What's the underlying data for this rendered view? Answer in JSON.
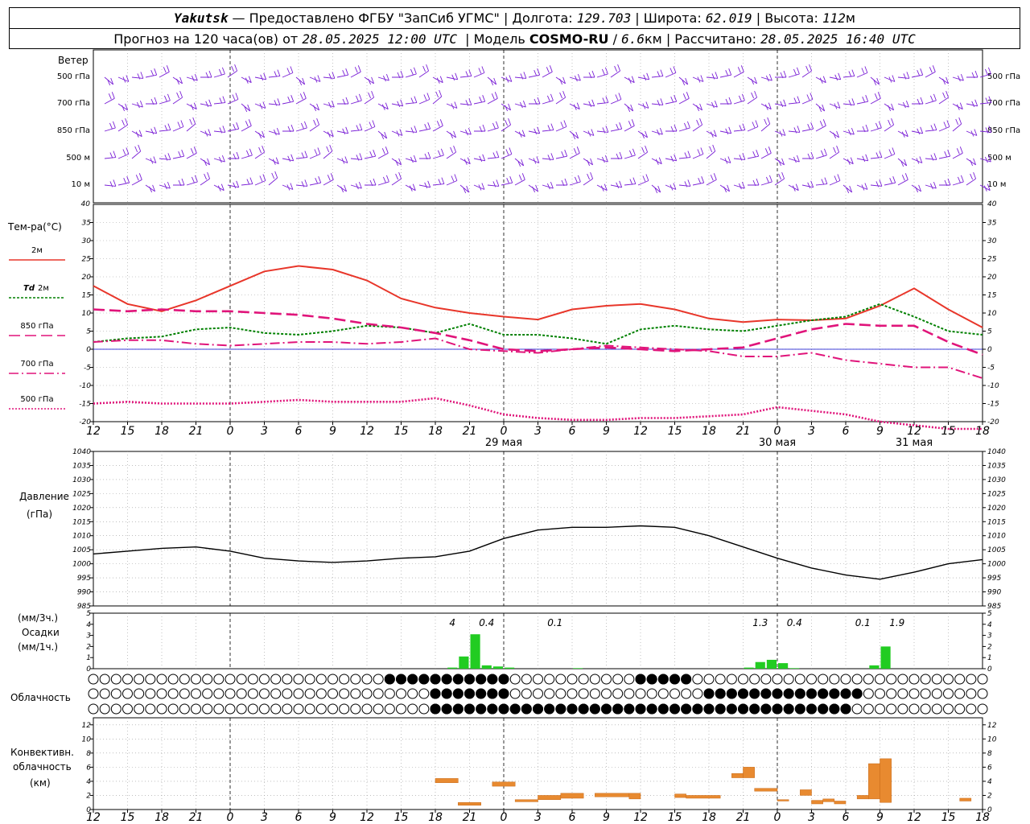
{
  "header": {
    "station": "Yakutsk",
    "dash": "—",
    "provider": "Предоставлено ФГБУ \"ЗапСиб УГМС\"",
    "lon_label": "Долгота:",
    "lon_value": "129.703",
    "lat_label": "Широта:",
    "lat_value": "62.019",
    "alt_label": "Высота:",
    "alt_value": "112",
    "alt_unit": "м",
    "forecast_prefix": "Прогноз на 120 часа(ов) от",
    "forecast_start": "28.05.2025 12:00 UTC",
    "model_label": "Модель",
    "model_name": "COSMO-RU",
    "model_res": "6.6",
    "model_res_unit": "км",
    "calc_label": "Рассчитано:",
    "calc_time": "28.05.2025 16:40 UTC"
  },
  "colors": {
    "wind": "#7a1fd6",
    "t2m": "#e8362a",
    "td2m": "#008000",
    "t850": "#e0147a",
    "t700": "#e0147a",
    "t500": "#e0147a",
    "pressure": "#000000",
    "precip": "#22cc22",
    "conv": "#e88a30",
    "zero_line": "#0000cc"
  },
  "x_axis": {
    "tick_labels": [
      "12",
      "15",
      "18",
      "21",
      "0",
      "3",
      "6",
      "9",
      "12",
      "15",
      "18",
      "21",
      "0",
      "3",
      "6",
      "9",
      "12",
      "15",
      "18",
      "21",
      "0",
      "3",
      "6",
      "9",
      "12",
      "15",
      "18"
    ],
    "day_labels": [
      "29 мая",
      "30 мая",
      "31 мая"
    ]
  },
  "wind_panel": {
    "title": "Ветер",
    "levels": [
      "500 гПа",
      "700 гПа",
      "850 гПа",
      "500 м",
      "10 м"
    ]
  },
  "temp_panel": {
    "title": "Тем-ра(°C)",
    "legend": [
      {
        "key": "t2m",
        "label": "2м"
      },
      {
        "key": "td2m",
        "prefix": "Td",
        "label": "2м"
      },
      {
        "key": "t850",
        "label": "850 гПа"
      },
      {
        "key": "t700",
        "label": "700 гПа"
      },
      {
        "key": "t500",
        "label": "500 гПа"
      }
    ]
  },
  "pressure_panel": {
    "title": "Давление",
    "unit": "(гПа)"
  },
  "precip_panel": {
    "unit3": "(мм/3ч.)",
    "title": "Осадки",
    "unit1": "(мм/1ч.)"
  },
  "cloud_panel": {
    "title": "Облачность"
  },
  "conv_panel": {
    "title1": "Конвективн.",
    "title2": "облачность",
    "unit": "(км)"
  },
  "chart_data": [
    {
      "type": "line",
      "title": "Тем-ра(°C)",
      "ylim": [
        -20,
        40
      ],
      "y_ticks": [
        -20,
        -15,
        -10,
        -5,
        0,
        5,
        10,
        15,
        20,
        25,
        30,
        35,
        40
      ],
      "x_hours": [
        0,
        3,
        6,
        9,
        12,
        15,
        18,
        21,
        24,
        27,
        30,
        33,
        36,
        39,
        42,
        45,
        48,
        51,
        54,
        57,
        60,
        63,
        66,
        69,
        72,
        75,
        78
      ],
      "series": [
        {
          "name": "2м",
          "values": [
            17.5,
            12.5,
            10.5,
            13.5,
            17.5,
            21.5,
            23,
            22,
            19,
            14,
            11.5,
            10,
            9,
            8.2,
            11,
            12,
            12.5,
            11,
            8.5,
            7.5,
            8.2,
            8,
            8.5,
            12,
            16.8,
            11,
            6
          ]
        },
        {
          "name": "Td 2м",
          "values": [
            2,
            3,
            3.5,
            5.5,
            6,
            4.5,
            4,
            5,
            6.5,
            6,
            4.5,
            7,
            4,
            4,
            3,
            1.5,
            5.5,
            6.5,
            5.5,
            5,
            6.5,
            8,
            9,
            12.5,
            9,
            5,
            4
          ]
        },
        {
          "name": "850 гПа",
          "values": [
            11,
            10.5,
            11,
            10.5,
            10.5,
            10,
            9.5,
            8.5,
            7,
            6,
            4.5,
            2.5,
            0,
            -0.5,
            0,
            0.5,
            0,
            -0.5,
            0,
            0.5,
            3,
            5.5,
            7,
            6.5,
            6.5,
            2,
            -1.5
          ]
        },
        {
          "name": "700 гПа",
          "values": [
            2,
            2.5,
            2.5,
            1.5,
            1,
            1.5,
            2,
            2,
            1.5,
            2,
            3,
            0,
            -0.5,
            -1,
            0,
            1,
            0.5,
            0,
            -0.5,
            -2,
            -2,
            -1,
            -3,
            -4,
            -5,
            -5,
            -8
          ]
        },
        {
          "name": "500 гПа",
          "values": [
            -15,
            -14.5,
            -15,
            -15,
            -15,
            -14.5,
            -14,
            -14.5,
            -14.5,
            -14.5,
            -13.5,
            -15.5,
            -18,
            -19,
            -19.5,
            -19.5,
            -19,
            -19,
            -18.5,
            -18,
            -16,
            -17,
            -18,
            -20,
            -21,
            -22,
            -22
          ]
        }
      ]
    },
    {
      "type": "line",
      "title": "Давление",
      "ylim": [
        985,
        1040
      ],
      "y_ticks": [
        985,
        990,
        995,
        1000,
        1005,
        1010,
        1015,
        1020,
        1025,
        1030,
        1035,
        1040
      ],
      "x_hours": [
        0,
        3,
        6,
        9,
        12,
        15,
        18,
        21,
        24,
        27,
        30,
        33,
        36,
        39,
        42,
        45,
        48,
        51,
        54,
        57,
        60,
        63,
        66,
        69,
        72,
        75,
        78
      ],
      "series": [
        {
          "name": "Давление",
          "values": [
            1003.5,
            1004.5,
            1005.5,
            1006,
            1004.5,
            1002,
            1001,
            1000.5,
            1001,
            1002,
            1002.5,
            1004.5,
            1009,
            1012,
            1013,
            1013,
            1013.5,
            1013,
            1010,
            1006,
            1002,
            998.5,
            996,
            994.5,
            997,
            1000,
            1001.5
          ]
        }
      ]
    },
    {
      "type": "bar",
      "title": "Осадки",
      "ylim": [
        0,
        5
      ],
      "y_ticks": [
        0,
        1,
        2,
        3,
        4,
        5
      ],
      "x_hours": [
        31,
        32,
        33,
        34,
        35,
        36,
        42,
        57,
        58,
        59,
        60,
        61,
        68,
        69
      ],
      "values": [
        0.1,
        1.1,
        3.1,
        0.3,
        0.2,
        0.1,
        0.05,
        0.1,
        0.6,
        0.8,
        0.5,
        0.05,
        0.3,
        2.0
      ],
      "annotations": [
        {
          "x": 31.5,
          "text": "4"
        },
        {
          "x": 34.5,
          "text": "0.4"
        },
        {
          "x": 40.5,
          "text": "0.1"
        },
        {
          "x": 58.5,
          "text": "1.3"
        },
        {
          "x": 61.5,
          "text": "0.4"
        },
        {
          "x": 67.5,
          "text": "0.1"
        },
        {
          "x": 70.5,
          "text": "1.9"
        }
      ]
    },
    {
      "type": "bar",
      "title": "Конвективн. облачность",
      "ylim": [
        0,
        13
      ],
      "y_ticks": [
        0,
        2,
        4,
        6,
        8,
        10,
        12
      ],
      "layers": [
        {
          "x0": 30,
          "x1": 32,
          "bottom": 3.8,
          "top": 4.4
        },
        {
          "x0": 32,
          "x1": 34,
          "bottom": 0.6,
          "top": 1.0
        },
        {
          "x0": 35,
          "x1": 37,
          "bottom": 3.3,
          "top": 3.9
        },
        {
          "x0": 37,
          "x1": 39,
          "bottom": 1.1,
          "top": 1.4
        },
        {
          "x0": 39,
          "x1": 41,
          "bottom": 1.4,
          "top": 2.0
        },
        {
          "x0": 41,
          "x1": 43,
          "bottom": 1.6,
          "top": 2.3
        },
        {
          "x0": 44,
          "x1": 47,
          "bottom": 1.8,
          "top": 2.3
        },
        {
          "x0": 47,
          "x1": 48,
          "bottom": 1.5,
          "top": 2.3
        },
        {
          "x0": 51,
          "x1": 52,
          "bottom": 1.7,
          "top": 2.2
        },
        {
          "x0": 52,
          "x1": 55,
          "bottom": 1.6,
          "top": 2.0
        },
        {
          "x0": 56,
          "x1": 57,
          "bottom": 4.5,
          "top": 5.1
        },
        {
          "x0": 57,
          "x1": 58,
          "bottom": 4.5,
          "top": 6.0
        },
        {
          "x0": 58,
          "x1": 60,
          "bottom": 2.6,
          "top": 3.0
        },
        {
          "x0": 60,
          "x1": 61,
          "bottom": 1.2,
          "top": 1.4
        },
        {
          "x0": 62,
          "x1": 63,
          "bottom": 2.0,
          "top": 2.8
        },
        {
          "x0": 63,
          "x1": 64,
          "bottom": 0.8,
          "top": 1.3
        },
        {
          "x0": 64,
          "x1": 65,
          "bottom": 1.1,
          "top": 1.5
        },
        {
          "x0": 65,
          "x1": 66,
          "bottom": 0.8,
          "top": 1.2
        },
        {
          "x0": 67,
          "x1": 68,
          "bottom": 1.5,
          "top": 2.0
        },
        {
          "x0": 68,
          "x1": 69,
          "bottom": 1.5,
          "top": 6.5
        },
        {
          "x0": 69,
          "x1": 70,
          "bottom": 1.0,
          "top": 7.2
        },
        {
          "x0": 76,
          "x1": 77,
          "bottom": 1.2,
          "top": 1.6
        }
      ]
    }
  ]
}
